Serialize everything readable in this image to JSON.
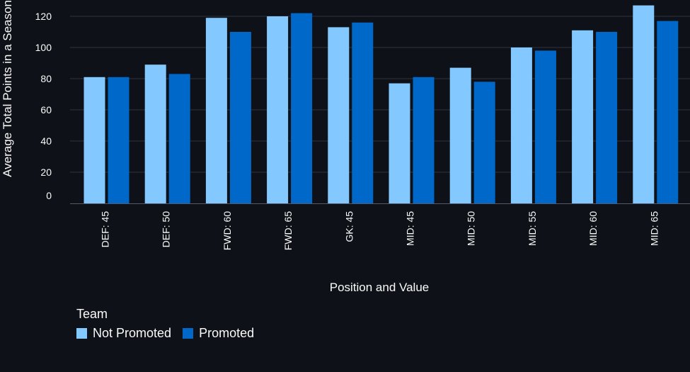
{
  "chart_data": {
    "type": "bar",
    "title": "",
    "xlabel": "Position and Value",
    "ylabel": "Average Total Points in a Season",
    "ylim": [
      0,
      130
    ],
    "yticks": [
      0,
      20,
      40,
      60,
      80,
      100,
      120
    ],
    "grid": true,
    "legend_title": "Team",
    "legend_position": "bottom-left",
    "categories": [
      "DEF: 45",
      "DEF: 50",
      "FWD: 60",
      "FWD: 65",
      "GK: 45",
      "MID: 45",
      "MID: 50",
      "MID: 55",
      "MID: 60",
      "MID: 65"
    ],
    "series": [
      {
        "name": "Not Promoted",
        "color": "#83c9ff",
        "values": [
          81,
          89,
          119,
          120,
          113,
          77,
          87,
          100,
          111,
          127
        ]
      },
      {
        "name": "Promoted",
        "color": "#0068c9",
        "values": [
          81,
          83,
          110,
          122,
          116,
          81,
          78,
          98,
          110,
          117
        ]
      }
    ]
  },
  "colors": {
    "background": "#0e1117",
    "text": "#fafafa",
    "grid": "#31333f"
  }
}
